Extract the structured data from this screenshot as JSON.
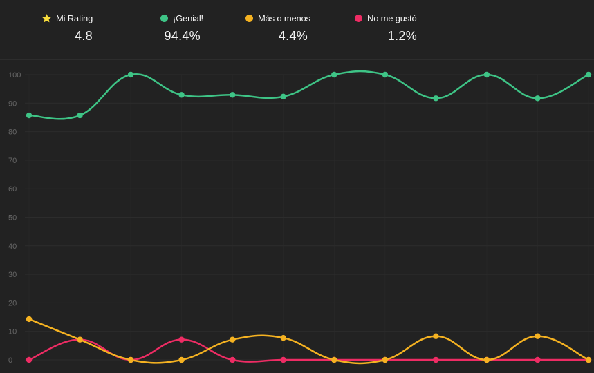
{
  "legend": {
    "rating": {
      "label": "Mi Rating",
      "value": "4.8",
      "icon": "star-icon",
      "color": "#f7dc3c"
    },
    "genial": {
      "label": "¡Genial!",
      "value": "94.4%",
      "color": "#3ec486"
    },
    "mas_o_menos": {
      "label": "Más o menos",
      "value": "4.4%",
      "color": "#f5b221"
    },
    "no_me_gusto": {
      "label": "No me gustó",
      "value": "1.2%",
      "color": "#ee2c64"
    }
  },
  "chart_data": {
    "type": "line",
    "x": [
      1,
      2,
      3,
      4,
      5,
      6,
      7,
      8,
      9,
      10,
      11,
      12
    ],
    "ylim": [
      0,
      100
    ],
    "yticks": [
      0,
      10,
      20,
      30,
      40,
      50,
      60,
      70,
      80,
      90,
      100
    ],
    "grid": true,
    "smooth": true,
    "series": [
      {
        "name": "¡Genial!",
        "color": "#3ec486",
        "values": [
          85.7,
          85.7,
          100,
          92.9,
          92.9,
          92.3,
          100,
          100,
          91.7,
          100,
          91.7,
          100
        ]
      },
      {
        "name": "Más o menos",
        "color": "#f5b221",
        "values": [
          14.3,
          7.1,
          0,
          0,
          7.1,
          7.7,
          0,
          0,
          8.3,
          0,
          8.3,
          0
        ]
      },
      {
        "name": "No me gustó",
        "color": "#ee2c64",
        "values": [
          0,
          7.1,
          0,
          7.1,
          0,
          0,
          0,
          0,
          0,
          0,
          0,
          0
        ]
      }
    ]
  }
}
